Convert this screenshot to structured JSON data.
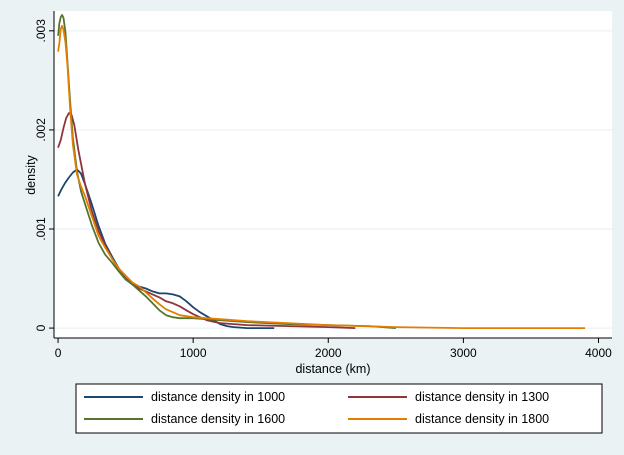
{
  "chart_data": {
    "type": "line",
    "xlabel": "distance (km)",
    "ylabel": "density",
    "xlim": [
      -30,
      4100
    ],
    "ylim": [
      -0.0001,
      0.0032
    ],
    "xticks": [
      {
        "v": 0,
        "label": "0"
      },
      {
        "v": 1000,
        "label": "1000"
      },
      {
        "v": 2000,
        "label": "2000"
      },
      {
        "v": 3000,
        "label": "3000"
      },
      {
        "v": 4000,
        "label": "4000"
      }
    ],
    "yticks": [
      {
        "v": 0,
        "label": "0"
      },
      {
        "v": 0.001,
        "label": ".001"
      },
      {
        "v": 0.002,
        "label": ".002"
      },
      {
        "v": 0.003,
        "label": ".003"
      }
    ],
    "grid": "horizontal",
    "legend_position": "bottom",
    "series": [
      {
        "name": "distance density in 1000",
        "color": "#1a476f",
        "points": [
          [
            0,
            0.00133
          ],
          [
            25,
            0.0014
          ],
          [
            50,
            0.00146
          ],
          [
            80,
            0.00152
          ],
          [
            110,
            0.00157
          ],
          [
            140,
            0.0016
          ],
          [
            170,
            0.00156
          ],
          [
            200,
            0.00145
          ],
          [
            250,
            0.00125
          ],
          [
            300,
            0.00103
          ],
          [
            350,
            0.00085
          ],
          [
            400,
            0.00072
          ],
          [
            450,
            0.0006
          ],
          [
            500,
            0.0005
          ],
          [
            550,
            0.00045
          ],
          [
            600,
            0.00042
          ],
          [
            650,
            0.0004
          ],
          [
            700,
            0.00037
          ],
          [
            750,
            0.00035
          ],
          [
            800,
            0.00035
          ],
          [
            850,
            0.00034
          ],
          [
            900,
            0.00032
          ],
          [
            950,
            0.00027
          ],
          [
            1000,
            0.00021
          ],
          [
            1050,
            0.00016
          ],
          [
            1100,
            0.00012
          ],
          [
            1150,
            8e-05
          ],
          [
            1200,
            4e-05
          ],
          [
            1250,
            2e-05
          ],
          [
            1300,
            1e-05
          ],
          [
            1400,
            0.0
          ],
          [
            1600,
            0.0
          ]
        ]
      },
      {
        "name": "distance density in 1300",
        "color": "#90353b",
        "points": [
          [
            0,
            0.00182
          ],
          [
            20,
            0.0019
          ],
          [
            40,
            0.00202
          ],
          [
            60,
            0.00212
          ],
          [
            80,
            0.00217
          ],
          [
            100,
            0.00215
          ],
          [
            120,
            0.00205
          ],
          [
            150,
            0.0018
          ],
          [
            200,
            0.00145
          ],
          [
            250,
            0.00118
          ],
          [
            300,
            0.00098
          ],
          [
            350,
            0.00083
          ],
          [
            400,
            0.0007
          ],
          [
            450,
            0.00059
          ],
          [
            500,
            0.0005
          ],
          [
            550,
            0.00044
          ],
          [
            600,
            0.0004
          ],
          [
            650,
            0.00037
          ],
          [
            700,
            0.00034
          ],
          [
            750,
            0.00031
          ],
          [
            800,
            0.00027
          ],
          [
            850,
            0.00025
          ],
          [
            900,
            0.00022
          ],
          [
            950,
            0.00018
          ],
          [
            1000,
            0.00014
          ],
          [
            1100,
            8e-05
          ],
          [
            1200,
            5e-05
          ],
          [
            1400,
            3e-05
          ],
          [
            1700,
            2e-05
          ],
          [
            2000,
            1e-05
          ],
          [
            2200,
            0.0
          ]
        ]
      },
      {
        "name": "distance density in 1600",
        "color": "#55752f",
        "points": [
          [
            0,
            0.00295
          ],
          [
            10,
            0.00308
          ],
          [
            20,
            0.00314
          ],
          [
            30,
            0.00316
          ],
          [
            40,
            0.00313
          ],
          [
            55,
            0.00298
          ],
          [
            70,
            0.00268
          ],
          [
            90,
            0.00228
          ],
          [
            110,
            0.00192
          ],
          [
            140,
            0.00158
          ],
          [
            170,
            0.00138
          ],
          [
            200,
            0.00125
          ],
          [
            250,
            0.00104
          ],
          [
            300,
            0.00086
          ],
          [
            350,
            0.00074
          ],
          [
            400,
            0.00066
          ],
          [
            450,
            0.00057
          ],
          [
            500,
            0.00049
          ],
          [
            550,
            0.00044
          ],
          [
            600,
            0.00038
          ],
          [
            650,
            0.00032
          ],
          [
            700,
            0.00025
          ],
          [
            750,
            0.00018
          ],
          [
            800,
            0.00013
          ],
          [
            850,
            0.00011
          ],
          [
            900,
            0.0001
          ],
          [
            1000,
            0.0001
          ],
          [
            1100,
            9e-05
          ],
          [
            1200,
            8e-05
          ],
          [
            1400,
            6e-05
          ],
          [
            1700,
            4e-05
          ],
          [
            2000,
            3e-05
          ],
          [
            2300,
            2e-05
          ],
          [
            2500,
            0.0
          ]
        ]
      },
      {
        "name": "distance density in 1800",
        "color": "#e37e00",
        "points": [
          [
            0,
            0.00279
          ],
          [
            10,
            0.00288
          ],
          [
            20,
            0.00302
          ],
          [
            30,
            0.00305
          ],
          [
            40,
            0.00301
          ],
          [
            55,
            0.00288
          ],
          [
            70,
            0.00265
          ],
          [
            90,
            0.0022
          ],
          [
            110,
            0.00185
          ],
          [
            140,
            0.00155
          ],
          [
            170,
            0.00143
          ],
          [
            200,
            0.00133
          ],
          [
            250,
            0.00113
          ],
          [
            300,
            0.00093
          ],
          [
            350,
            0.00081
          ],
          [
            400,
            0.0007
          ],
          [
            450,
            0.0006
          ],
          [
            500,
            0.00053
          ],
          [
            550,
            0.00046
          ],
          [
            600,
            0.00042
          ],
          [
            650,
            0.00036
          ],
          [
            700,
            0.0003
          ],
          [
            750,
            0.00024
          ],
          [
            800,
            0.00019
          ],
          [
            850,
            0.00016
          ],
          [
            900,
            0.00013
          ],
          [
            1000,
            0.00011
          ],
          [
            1100,
            0.0001
          ],
          [
            1200,
            9e-05
          ],
          [
            1400,
            7e-05
          ],
          [
            1700,
            5e-05
          ],
          [
            2000,
            3e-05
          ],
          [
            2500,
            1e-05
          ],
          [
            3000,
            0.0
          ],
          [
            3900,
            0.0
          ]
        ]
      }
    ]
  }
}
